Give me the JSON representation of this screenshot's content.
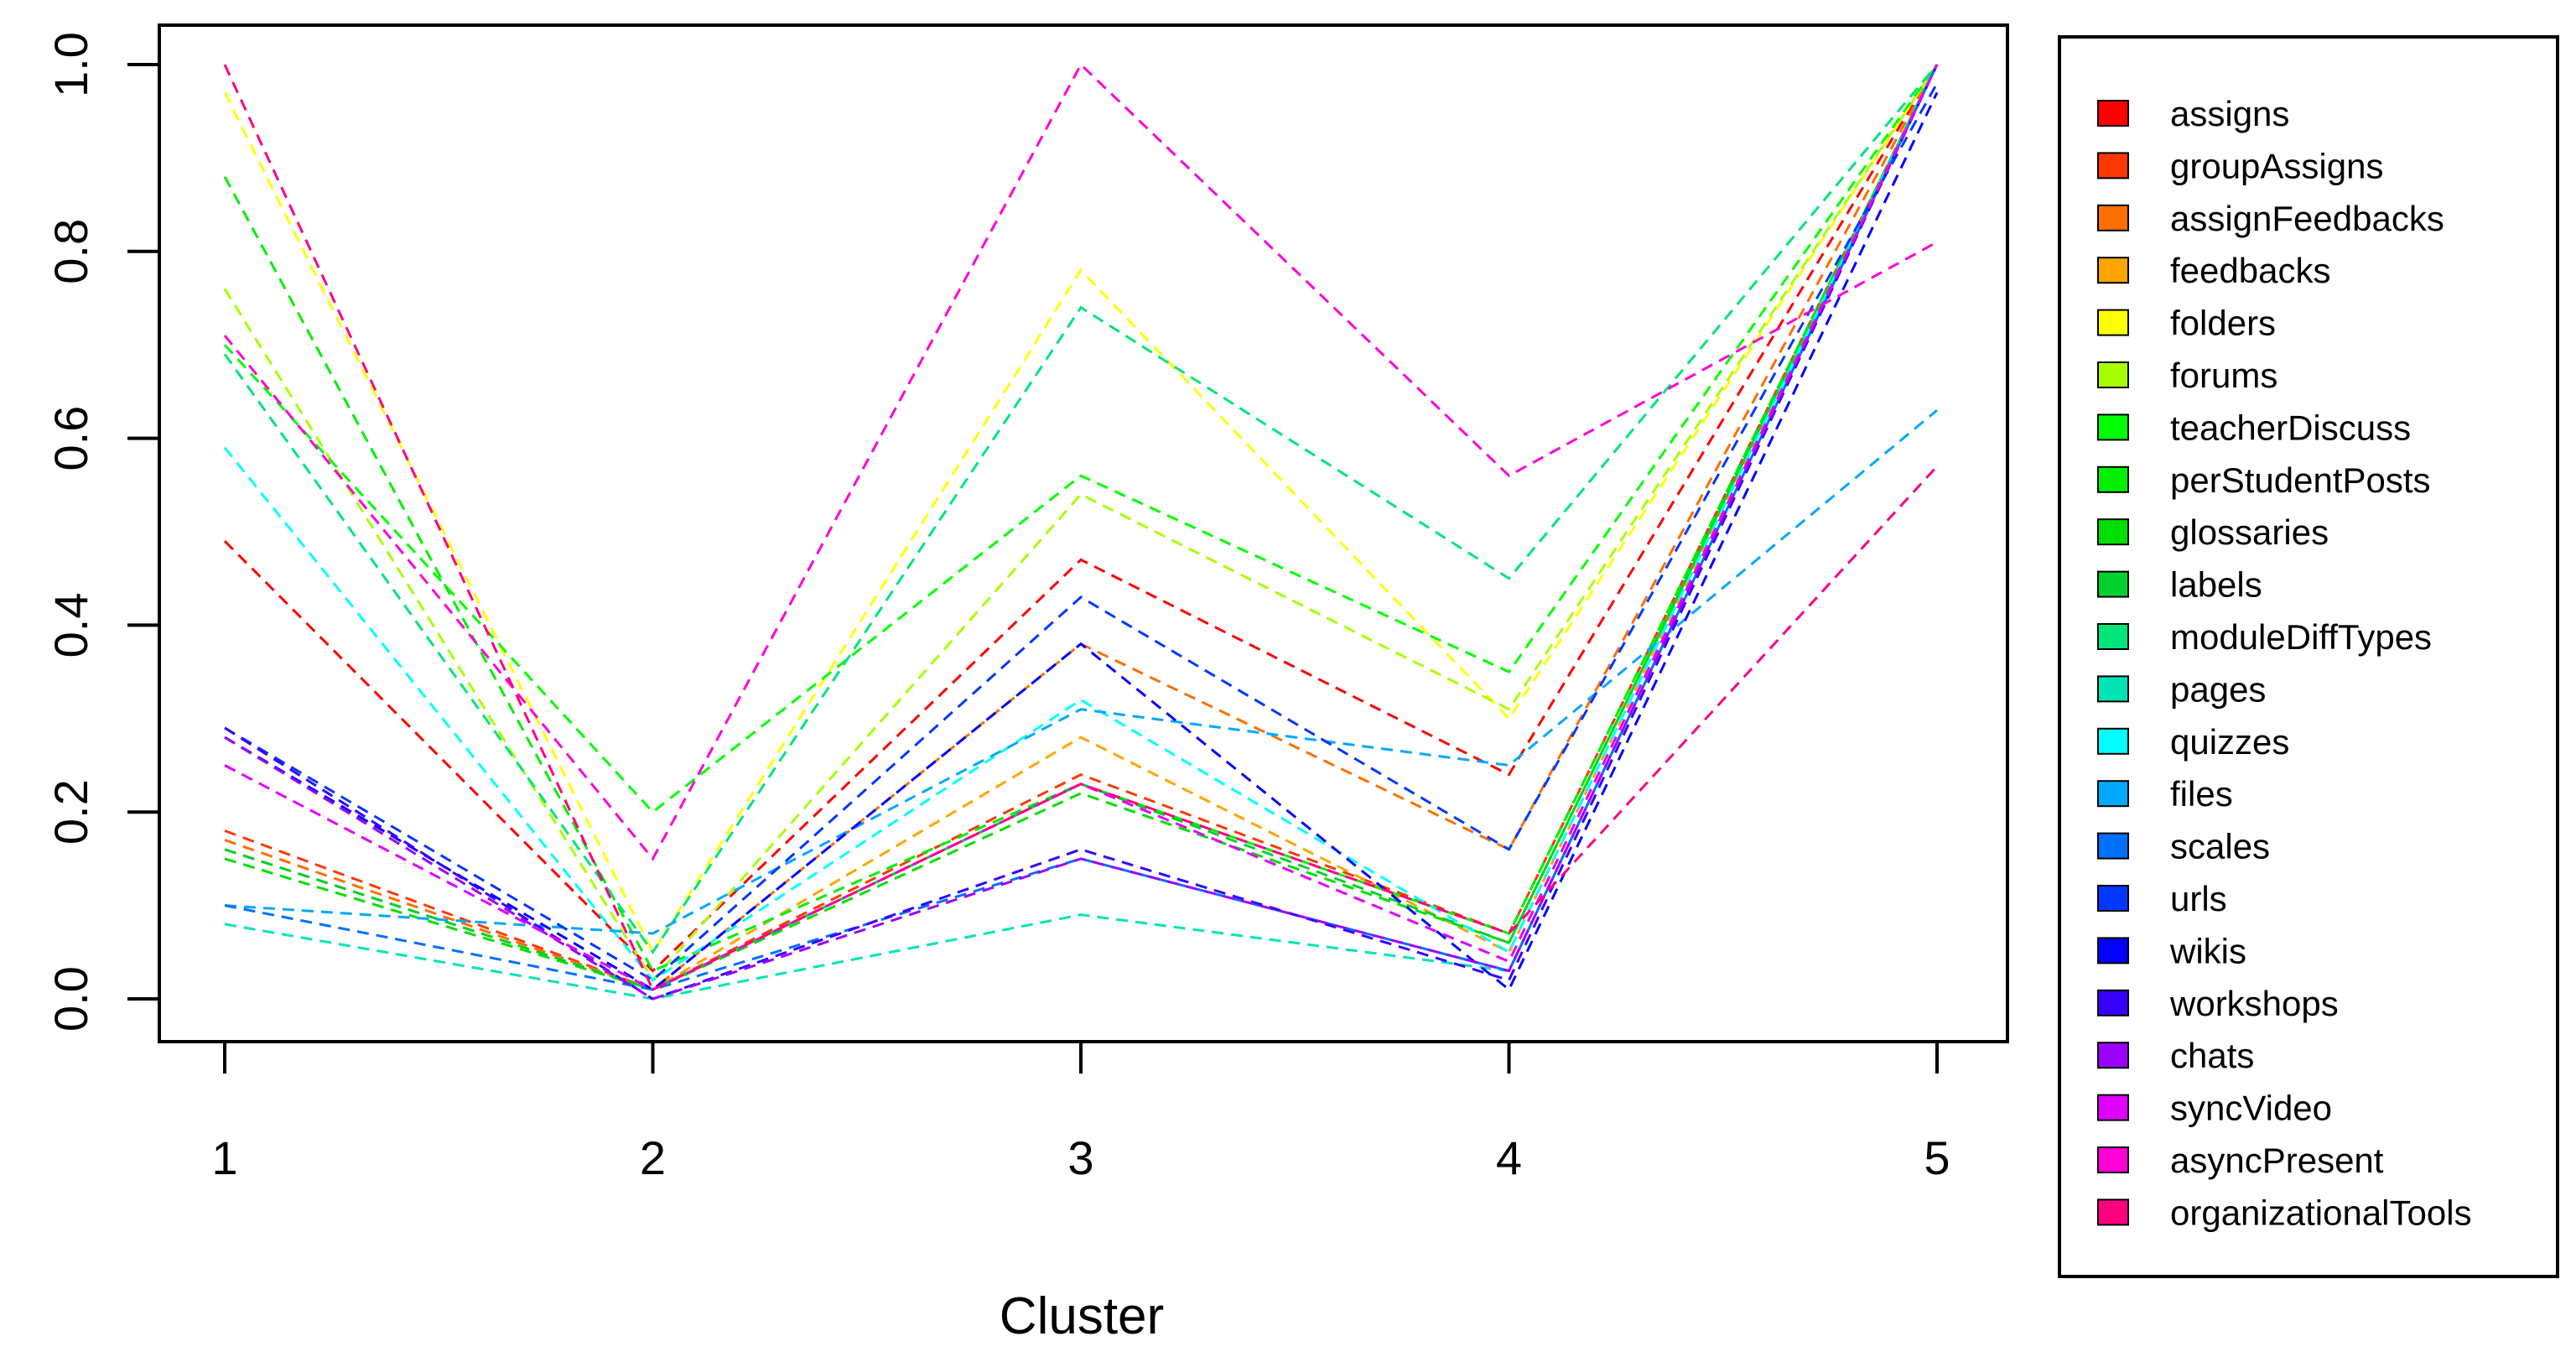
{
  "chart_data": {
    "type": "line",
    "xlabel": "Cluster",
    "ylabel": "",
    "x": [
      1,
      2,
      3,
      4,
      5
    ],
    "xlim": [
      1,
      5
    ],
    "ylim": [
      0,
      1
    ],
    "xticks": [
      "1",
      "2",
      "3",
      "4",
      "5"
    ],
    "yticks": [
      "0.0",
      "0.2",
      "0.4",
      "0.6",
      "0.8",
      "1.0"
    ],
    "line_style": "dashed",
    "grid": false,
    "legend_position": "right",
    "series": [
      {
        "name": "assigns",
        "color": "#FF0000",
        "values": [
          0.49,
          0.03,
          0.47,
          0.24,
          1.0
        ]
      },
      {
        "name": "groupAssigns",
        "color": "#FF3700",
        "values": [
          0.18,
          0.01,
          0.24,
          0.07,
          1.0
        ]
      },
      {
        "name": "assignFeedbacks",
        "color": "#FF6E00",
        "values": [
          0.17,
          0.01,
          0.38,
          0.16,
          1.0
        ]
      },
      {
        "name": "feedbacks",
        "color": "#FFA500",
        "values": [
          0.16,
          0.01,
          0.28,
          0.05,
          1.0
        ]
      },
      {
        "name": "folders",
        "color": "#FFFF00",
        "values": [
          0.97,
          0.05,
          0.78,
          0.3,
          1.0
        ]
      },
      {
        "name": "forums",
        "color": "#A8FF00",
        "values": [
          0.76,
          0.02,
          0.54,
          0.31,
          1.0
        ]
      },
      {
        "name": "teacherDiscuss",
        "color": "#00FF00",
        "values": [
          0.7,
          0.2,
          0.56,
          0.35,
          1.0
        ]
      },
      {
        "name": "perStudentPosts",
        "color": "#00F000",
        "values": [
          0.88,
          0.03,
          0.23,
          0.07,
          1.0
        ]
      },
      {
        "name": "glossaries",
        "color": "#00E000",
        "values": [
          0.15,
          0.01,
          0.22,
          0.06,
          1.0
        ]
      },
      {
        "name": "labels",
        "color": "#00D030",
        "values": [
          0.16,
          0.01,
          0.23,
          0.06,
          1.0
        ]
      },
      {
        "name": "moduleDiffTypes",
        "color": "#00E57A",
        "values": [
          0.69,
          0.05,
          0.74,
          0.45,
          1.0
        ]
      },
      {
        "name": "pages",
        "color": "#00E5B5",
        "values": [
          0.08,
          0.0,
          0.09,
          0.03,
          1.0
        ]
      },
      {
        "name": "quizzes",
        "color": "#00FFFF",
        "values": [
          0.59,
          0.02,
          0.32,
          0.05,
          1.0
        ]
      },
      {
        "name": "files",
        "color": "#00A8FF",
        "values": [
          0.1,
          0.07,
          0.31,
          0.25,
          0.63
        ]
      },
      {
        "name": "scales",
        "color": "#0070FF",
        "values": [
          0.1,
          0.01,
          0.15,
          0.03,
          1.0
        ]
      },
      {
        "name": "urls",
        "color": "#0038FF",
        "values": [
          0.29,
          0.02,
          0.43,
          0.16,
          0.98
        ]
      },
      {
        "name": "wikis",
        "color": "#0000FF",
        "values": [
          0.28,
          0.01,
          0.38,
          0.01,
          0.97
        ]
      },
      {
        "name": "workshops",
        "color": "#3700FF",
        "values": [
          0.29,
          0.0,
          0.16,
          0.02,
          1.0
        ]
      },
      {
        "name": "chats",
        "color": "#9B00FF",
        "values": [
          0.28,
          0.0,
          0.15,
          0.03,
          1.0
        ]
      },
      {
        "name": "syncVideo",
        "color": "#E000FF",
        "values": [
          0.25,
          0.01,
          0.23,
          0.04,
          1.0
        ]
      },
      {
        "name": "asyncPresent",
        "color": "#FF00D8",
        "values": [
          0.71,
          0.15,
          1.0,
          0.56,
          0.81
        ]
      },
      {
        "name": "organizationalTools",
        "color": "#FF0080",
        "values": [
          1.0,
          0.01,
          0.23,
          0.07,
          0.57
        ]
      }
    ]
  }
}
